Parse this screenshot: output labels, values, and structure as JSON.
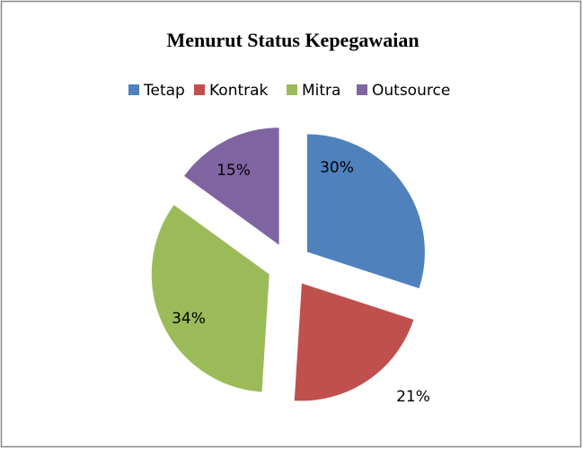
{
  "chart_data": {
    "type": "pie",
    "title": "Menurut Status Kepegawaian",
    "categories": [
      "Tetap",
      "Kontrak",
      "Mitra",
      "Outsource"
    ],
    "values": [
      30,
      21,
      34,
      15
    ],
    "value_labels": [
      "30%",
      "21%",
      "34%",
      "15%"
    ],
    "colors": [
      "#4f81bd",
      "#c0504d",
      "#9bbb59",
      "#8064a2"
    ],
    "legend": "top"
  }
}
